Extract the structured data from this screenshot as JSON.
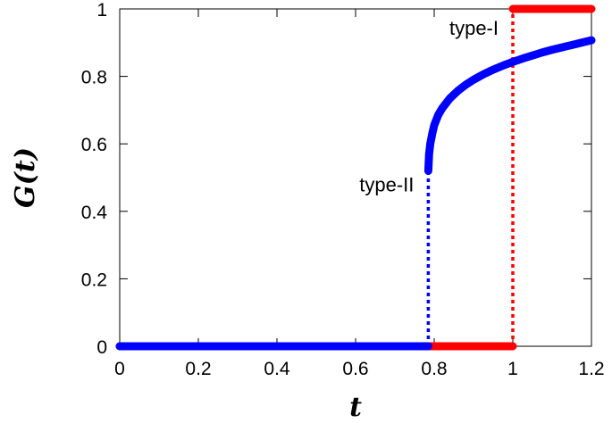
{
  "chart_data": {
    "type": "line",
    "title": "",
    "xlabel": "t",
    "ylabel": "G(t)",
    "xlim": [
      0,
      1.2
    ],
    "ylim": [
      0,
      1
    ],
    "x_ticks": [
      {
        "value": 0,
        "label": "0"
      },
      {
        "value": 0.2,
        "label": "0.2"
      },
      {
        "value": 0.4,
        "label": "0.4"
      },
      {
        "value": 0.6,
        "label": "0.6"
      },
      {
        "value": 0.8,
        "label": "0.8"
      },
      {
        "value": 1,
        "label": "1"
      },
      {
        "value": 1.2,
        "label": "1.2"
      }
    ],
    "y_ticks": [
      {
        "value": 0,
        "label": "0"
      },
      {
        "value": 0.2,
        "label": "0.2"
      },
      {
        "value": 0.4,
        "label": "0.4"
      },
      {
        "value": 0.6,
        "label": "0.6"
      },
      {
        "value": 0.8,
        "label": "0.8"
      },
      {
        "value": 1,
        "label": "1"
      }
    ],
    "grid": false,
    "legend": "none",
    "series": [
      {
        "color": "#ff0000",
        "style": "solid-thick",
        "segments": [
          {
            "x": [
              0,
              1
            ],
            "y": [
              0,
              0
            ]
          },
          {
            "x": [
              1,
              1.2
            ],
            "y": [
              1,
              1
            ]
          }
        ]
      },
      {
        "color": "#ff0000",
        "style": "dotted",
        "segments": [
          {
            "x": [
              1,
              1
            ],
            "y": [
              0,
              1
            ]
          }
        ]
      },
      {
        "color": "#0000ff",
        "style": "solid-thick",
        "segments": [
          {
            "x": [
              0,
              0.785
            ],
            "y": [
              0,
              0
            ]
          },
          {
            "x": [
              0.785,
              0.787,
              0.79,
              0.795,
              0.8,
              0.81,
              0.82,
              0.84,
              0.86,
              0.88,
              0.9,
              0.925,
              0.95,
              0.975,
              1.0,
              1.025,
              1.05,
              1.075,
              1.1,
              1.125,
              1.15,
              1.175,
              1.2
            ],
            "y": [
              0.52,
              0.57,
              0.6,
              0.63,
              0.655,
              0.685,
              0.705,
              0.735,
              0.757,
              0.775,
              0.79,
              0.806,
              0.82,
              0.832,
              0.843,
              0.853,
              0.862,
              0.871,
              0.879,
              0.886,
              0.893,
              0.9,
              0.907
            ]
          }
        ]
      },
      {
        "color": "#0000ff",
        "style": "dotted",
        "segments": [
          {
            "x": [
              0.785,
              0.785
            ],
            "y": [
              0,
              0.52
            ]
          }
        ]
      }
    ],
    "annotations": [
      {
        "text": "type-I",
        "x": 1.0,
        "y": 0.945
      },
      {
        "text": "type-II",
        "x": 0.785,
        "y": 0.48
      }
    ]
  }
}
